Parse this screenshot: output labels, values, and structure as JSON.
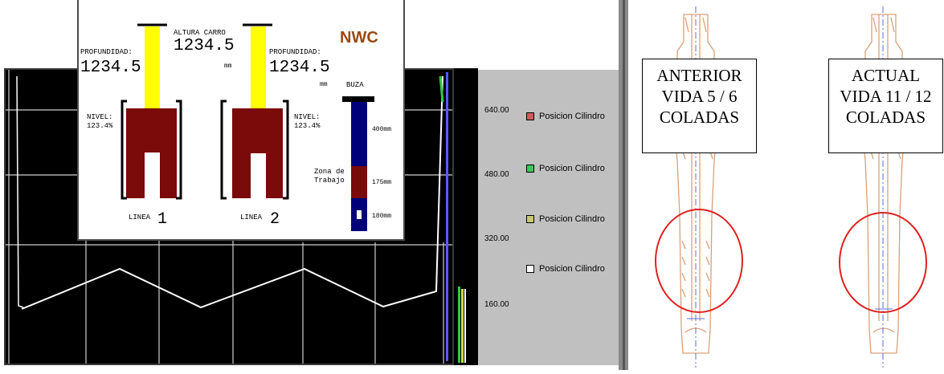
{
  "brand": "NWC",
  "carro": {
    "label": "ALTURA CARRO",
    "value": "1234.5",
    "unit": "mm"
  },
  "line1": {
    "depth_label": "PROFUNDIDAD:",
    "depth_value": "1234.5",
    "level_label": "NIVEL:",
    "level_value": "123.4%",
    "name": "LINEA",
    "number": "1"
  },
  "line2": {
    "depth_label": "PROFUNDIDAD:",
    "depth_value": "1234.5",
    "depth_unit": "mm",
    "level_label": "NIVEL:",
    "level_value": "123.4%",
    "name": "LINEA",
    "number": "2"
  },
  "buza": {
    "title": "BUZA",
    "zone_label_1": "Zona de",
    "zone_label_2": "Trabajo",
    "marks": [
      "400mm",
      "175mm",
      "180mm"
    ]
  },
  "trend": {
    "yticks": [
      "640.00",
      "480.00",
      "320.00",
      "160.00"
    ],
    "legend": [
      {
        "label": "Posicion Cilindro",
        "color": "#d25a5a"
      },
      {
        "label": "Posicion Cilindro",
        "color": "#3cc85a"
      },
      {
        "label": "Posicion Cilindro",
        "color": "#c8c86e"
      },
      {
        "label": "Posicion Cilindro",
        "color": "#ffffff"
      }
    ],
    "colors": {
      "line": "#ffffff",
      "grid": "#cfcfcf",
      "green": "#2ecc40",
      "yellow": "#d8d840"
    }
  },
  "drawing": {
    "left": {
      "line1": "ANTERIOR",
      "line2": "VIDA 5 / 6",
      "line3": "COLADAS"
    },
    "right": {
      "line1": "ACTUAL",
      "line2": "VIDA 11 / 12",
      "line3": "COLADAS"
    },
    "colors": {
      "outline": "#d9a07a",
      "circle": "#e02020",
      "axis": "#5a6ee0"
    }
  },
  "colors": {
    "darkred": "#7b0a0a",
    "yellow": "#ffff00",
    "blue": "#00007a",
    "black": "#000000"
  }
}
